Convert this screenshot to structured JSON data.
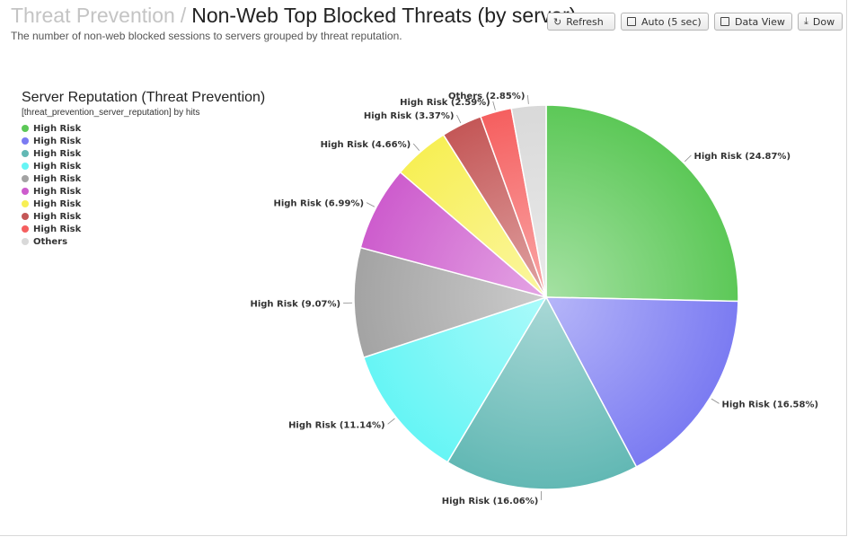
{
  "header": {
    "breadcrumb": "Threat Prevention",
    "separator": "/",
    "title": "Non-Web Top Blocked Threats (by server)",
    "subtitle": "The number of non-web blocked sessions to servers grouped by threat reputation."
  },
  "toolbar": {
    "refresh_label": "Refresh",
    "auto_label": "Auto (5 sec)",
    "data_view_label": "Data View",
    "download_label": "Dow"
  },
  "legend": {
    "title": "Server Reputation (Threat Prevention)",
    "subtitle": "[threat_prevention_server_reputation] by hits"
  },
  "chart_data": {
    "type": "pie",
    "slices": [
      {
        "name": "High Risk",
        "value": 24.87,
        "label": "High Risk (24.87%)",
        "color": "#5cc857"
      },
      {
        "name": "High Risk",
        "value": 16.58,
        "label": "High Risk (16.58%)",
        "color": "#7b7bf2"
      },
      {
        "name": "High Risk",
        "value": 16.06,
        "label": "High Risk (16.06%)",
        "color": "#62b8b4"
      },
      {
        "name": "High Risk",
        "value": 11.14,
        "label": "High Risk (11.14%)",
        "color": "#66f5f5"
      },
      {
        "name": "High Risk",
        "value": 9.07,
        "label": "High Risk (9.07%)",
        "color": "#a3a3a3"
      },
      {
        "name": "High Risk",
        "value": 6.99,
        "label": "High Risk (6.99%)",
        "color": "#cd5ccd"
      },
      {
        "name": "High Risk",
        "value": 4.66,
        "label": "High Risk (4.66%)",
        "color": "#f7ef55"
      },
      {
        "name": "High Risk",
        "value": 3.37,
        "label": "High Risk (3.37%)",
        "color": "#c45757"
      },
      {
        "name": "High Risk",
        "value": 2.59,
        "label": "High Risk (2.59%)",
        "color": "#f55f5f"
      },
      {
        "name": "Others",
        "value": 2.85,
        "label": "Others (2.85%)",
        "color": "#d9d9d9"
      }
    ]
  }
}
